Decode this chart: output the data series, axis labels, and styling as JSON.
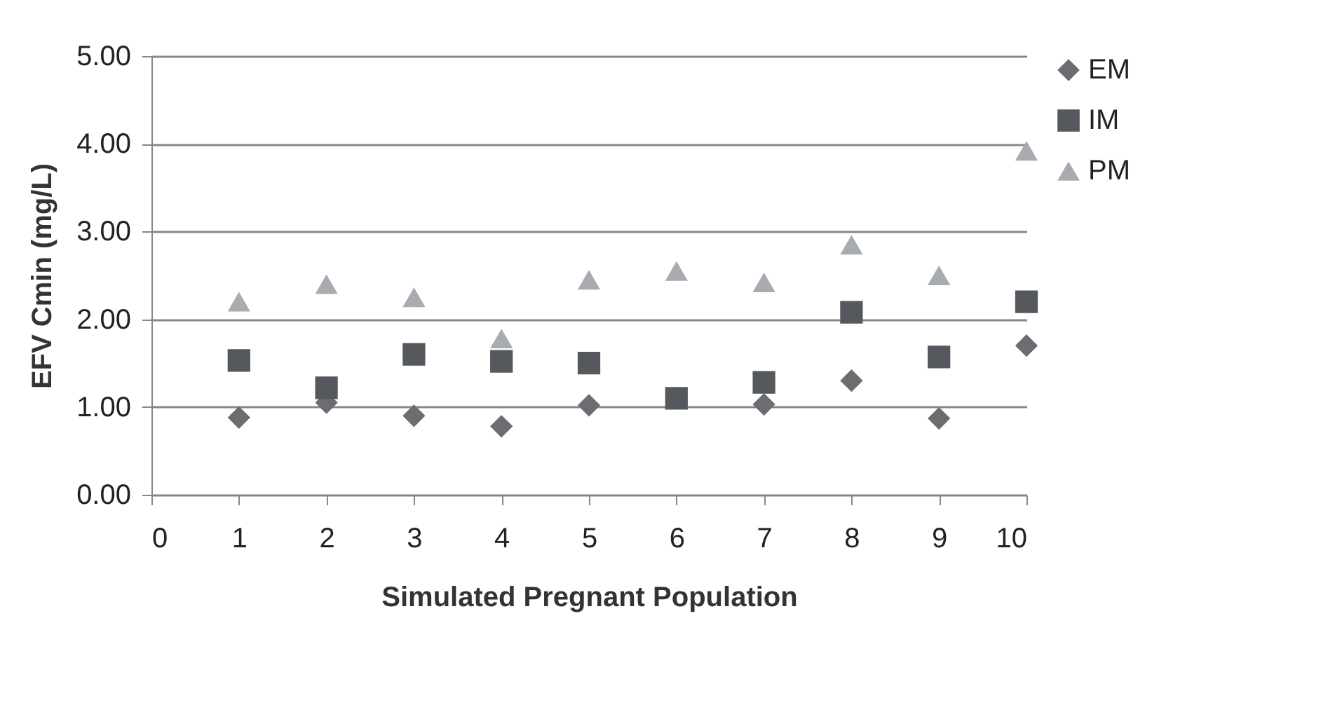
{
  "chart_data": {
    "type": "scatter",
    "xlabel": "Simulated Pregnant Population",
    "ylabel": "EFV Cmin (mg/L)",
    "x": [
      1,
      2,
      3,
      4,
      5,
      6,
      7,
      8,
      9,
      10
    ],
    "series": [
      {
        "name": "EM",
        "color": "#6b6d70",
        "marker": "diamond",
        "values": [
          0.88,
          1.05,
          0.9,
          0.78,
          1.02,
          null,
          1.03,
          1.3,
          0.87,
          1.7
        ]
      },
      {
        "name": "IM",
        "color": "#55585d",
        "marker": "square",
        "values": [
          1.53,
          1.22,
          1.6,
          1.52,
          1.5,
          1.1,
          1.28,
          2.08,
          1.57,
          2.2
        ]
      },
      {
        "name": "PM",
        "color": "#a8abb0",
        "marker": "triangle",
        "values": [
          2.2,
          2.4,
          2.25,
          1.78,
          2.45,
          2.55,
          2.42,
          2.85,
          2.5,
          3.92
        ]
      }
    ],
    "xlim": [
      0,
      10
    ],
    "xticks": [
      0,
      1,
      2,
      3,
      4,
      5,
      6,
      7,
      8,
      9,
      10
    ],
    "ylim": [
      0,
      5
    ],
    "yticks": [
      {
        "value": 0,
        "label": "0.00"
      },
      {
        "value": 1,
        "label": "1.00"
      },
      {
        "value": 2,
        "label": "2.00"
      },
      {
        "value": 3,
        "label": "3.00"
      },
      {
        "value": 4,
        "label": "4.00"
      },
      {
        "value": 5,
        "label": "5.00"
      }
    ],
    "grid": "y",
    "legend": "right"
  }
}
